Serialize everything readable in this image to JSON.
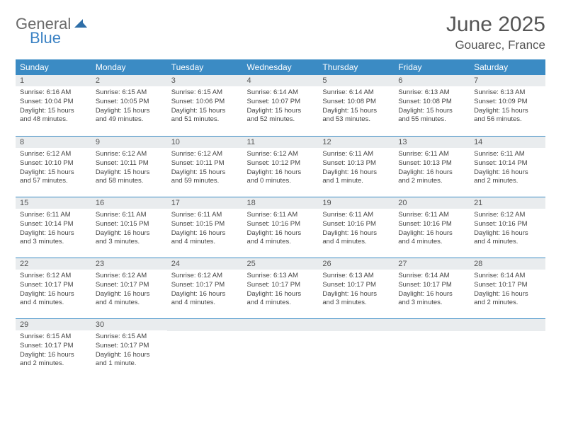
{
  "logo": {
    "word1": "General",
    "word2": "Blue"
  },
  "title": "June 2025",
  "location": "Gouarec, France",
  "colors": {
    "header_bg": "#3b8bc4",
    "daybar_bg": "#e9ecee",
    "rule": "#3b8bc4",
    "text": "#444444",
    "title_text": "#555555"
  },
  "weekdays": [
    "Sunday",
    "Monday",
    "Tuesday",
    "Wednesday",
    "Thursday",
    "Friday",
    "Saturday"
  ],
  "weeks": [
    [
      {
        "n": "1",
        "sr": "6:16 AM",
        "ss": "10:04 PM",
        "dl": "15 hours and 48 minutes."
      },
      {
        "n": "2",
        "sr": "6:15 AM",
        "ss": "10:05 PM",
        "dl": "15 hours and 49 minutes."
      },
      {
        "n": "3",
        "sr": "6:15 AM",
        "ss": "10:06 PM",
        "dl": "15 hours and 51 minutes."
      },
      {
        "n": "4",
        "sr": "6:14 AM",
        "ss": "10:07 PM",
        "dl": "15 hours and 52 minutes."
      },
      {
        "n": "5",
        "sr": "6:14 AM",
        "ss": "10:08 PM",
        "dl": "15 hours and 53 minutes."
      },
      {
        "n": "6",
        "sr": "6:13 AM",
        "ss": "10:08 PM",
        "dl": "15 hours and 55 minutes."
      },
      {
        "n": "7",
        "sr": "6:13 AM",
        "ss": "10:09 PM",
        "dl": "15 hours and 56 minutes."
      }
    ],
    [
      {
        "n": "8",
        "sr": "6:12 AM",
        "ss": "10:10 PM",
        "dl": "15 hours and 57 minutes."
      },
      {
        "n": "9",
        "sr": "6:12 AM",
        "ss": "10:11 PM",
        "dl": "15 hours and 58 minutes."
      },
      {
        "n": "10",
        "sr": "6:12 AM",
        "ss": "10:11 PM",
        "dl": "15 hours and 59 minutes."
      },
      {
        "n": "11",
        "sr": "6:12 AM",
        "ss": "10:12 PM",
        "dl": "16 hours and 0 minutes."
      },
      {
        "n": "12",
        "sr": "6:11 AM",
        "ss": "10:13 PM",
        "dl": "16 hours and 1 minute."
      },
      {
        "n": "13",
        "sr": "6:11 AM",
        "ss": "10:13 PM",
        "dl": "16 hours and 2 minutes."
      },
      {
        "n": "14",
        "sr": "6:11 AM",
        "ss": "10:14 PM",
        "dl": "16 hours and 2 minutes."
      }
    ],
    [
      {
        "n": "15",
        "sr": "6:11 AM",
        "ss": "10:14 PM",
        "dl": "16 hours and 3 minutes."
      },
      {
        "n": "16",
        "sr": "6:11 AM",
        "ss": "10:15 PM",
        "dl": "16 hours and 3 minutes."
      },
      {
        "n": "17",
        "sr": "6:11 AM",
        "ss": "10:15 PM",
        "dl": "16 hours and 4 minutes."
      },
      {
        "n": "18",
        "sr": "6:11 AM",
        "ss": "10:16 PM",
        "dl": "16 hours and 4 minutes."
      },
      {
        "n": "19",
        "sr": "6:11 AM",
        "ss": "10:16 PM",
        "dl": "16 hours and 4 minutes."
      },
      {
        "n": "20",
        "sr": "6:11 AM",
        "ss": "10:16 PM",
        "dl": "16 hours and 4 minutes."
      },
      {
        "n": "21",
        "sr": "6:12 AM",
        "ss": "10:16 PM",
        "dl": "16 hours and 4 minutes."
      }
    ],
    [
      {
        "n": "22",
        "sr": "6:12 AM",
        "ss": "10:17 PM",
        "dl": "16 hours and 4 minutes."
      },
      {
        "n": "23",
        "sr": "6:12 AM",
        "ss": "10:17 PM",
        "dl": "16 hours and 4 minutes."
      },
      {
        "n": "24",
        "sr": "6:12 AM",
        "ss": "10:17 PM",
        "dl": "16 hours and 4 minutes."
      },
      {
        "n": "25",
        "sr": "6:13 AM",
        "ss": "10:17 PM",
        "dl": "16 hours and 4 minutes."
      },
      {
        "n": "26",
        "sr": "6:13 AM",
        "ss": "10:17 PM",
        "dl": "16 hours and 3 minutes."
      },
      {
        "n": "27",
        "sr": "6:14 AM",
        "ss": "10:17 PM",
        "dl": "16 hours and 3 minutes."
      },
      {
        "n": "28",
        "sr": "6:14 AM",
        "ss": "10:17 PM",
        "dl": "16 hours and 2 minutes."
      }
    ],
    [
      {
        "n": "29",
        "sr": "6:15 AM",
        "ss": "10:17 PM",
        "dl": "16 hours and 2 minutes."
      },
      {
        "n": "30",
        "sr": "6:15 AM",
        "ss": "10:17 PM",
        "dl": "16 hours and 1 minute."
      },
      null,
      null,
      null,
      null,
      null
    ]
  ],
  "labels": {
    "sunrise": "Sunrise: ",
    "sunset": "Sunset: ",
    "daylight": "Daylight: "
  }
}
